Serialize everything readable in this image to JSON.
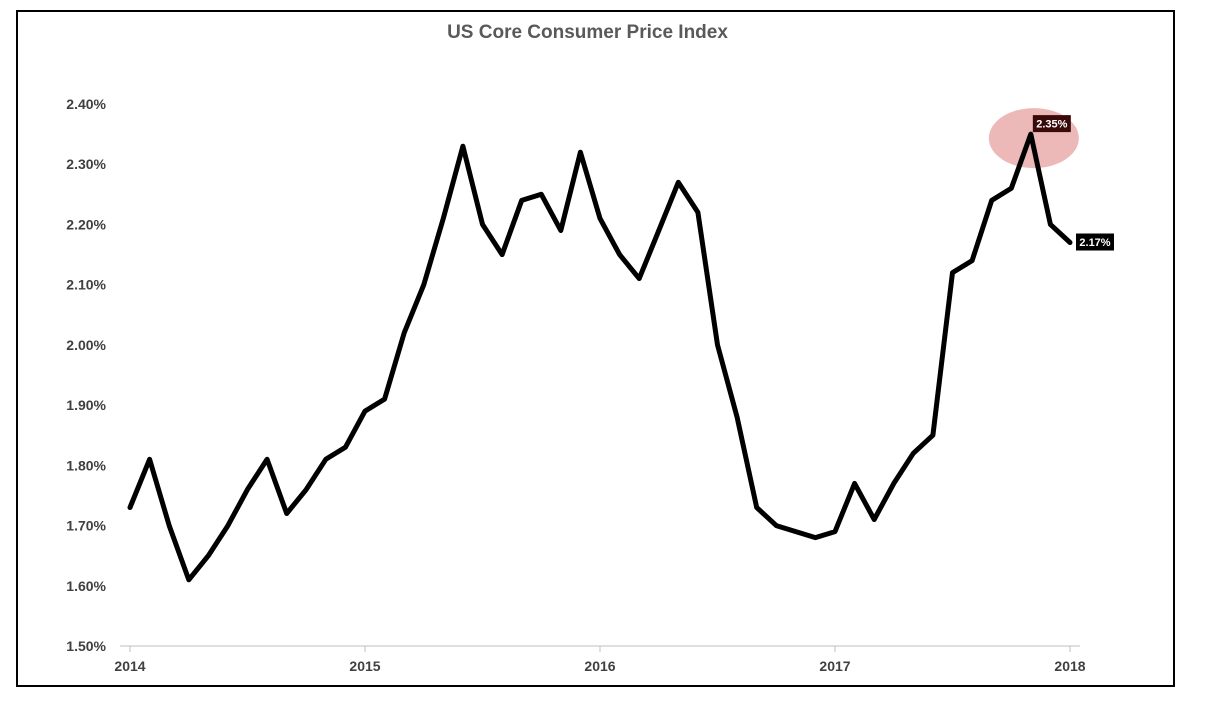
{
  "chart_data": {
    "type": "line",
    "title": "US Core Consumer Price Index",
    "xlabel": "",
    "ylabel": "",
    "ylim": [
      1.5,
      2.4
    ],
    "xlim": [
      "2014-01",
      "2018-01"
    ],
    "yticks": [
      "1.50%",
      "1.60%",
      "1.70%",
      "1.80%",
      "1.90%",
      "2.00%",
      "2.10%",
      "2.20%",
      "2.30%",
      "2.40%"
    ],
    "xticks": [
      "2014",
      "2015",
      "2016",
      "2017",
      "2018"
    ],
    "grid": false,
    "legend": "none",
    "series": [
      {
        "color": "#000000",
        "x": [
          "2014-01",
          "2014-02",
          "2014-03",
          "2014-04",
          "2014-05",
          "2014-06",
          "2014-07",
          "2014-08",
          "2014-09",
          "2014-10",
          "2014-11",
          "2014-12",
          "2015-01",
          "2015-02",
          "2015-03",
          "2015-04",
          "2015-05",
          "2015-06",
          "2015-07",
          "2015-08",
          "2015-09",
          "2015-10",
          "2015-11",
          "2015-12",
          "2016-01",
          "2016-02",
          "2016-03",
          "2016-04",
          "2016-05",
          "2016-06",
          "2016-07",
          "2016-08",
          "2016-09",
          "2016-10",
          "2016-11",
          "2016-12",
          "2017-01",
          "2017-02",
          "2017-03",
          "2017-04",
          "2017-05",
          "2017-06",
          "2017-07",
          "2017-08",
          "2017-09",
          "2017-10",
          "2017-11",
          "2017-12",
          "2018-01"
        ],
        "values": [
          1.73,
          1.81,
          1.7,
          1.61,
          1.65,
          1.7,
          1.76,
          1.81,
          1.72,
          1.76,
          1.81,
          1.83,
          1.89,
          1.91,
          2.02,
          2.1,
          2.21,
          2.33,
          2.2,
          2.15,
          2.24,
          2.25,
          2.19,
          2.32,
          2.21,
          2.15,
          2.11,
          2.19,
          2.27,
          2.22,
          2.0,
          1.88,
          1.73,
          1.7,
          1.69,
          1.68,
          1.69,
          1.77,
          1.71,
          1.77,
          1.82,
          1.85,
          2.12,
          2.14,
          2.24,
          2.26,
          2.35,
          2.2,
          2.17
        ]
      }
    ],
    "annotations": [
      {
        "x": "2017-11",
        "value": 2.35,
        "text": "2.35%",
        "highlight": true,
        "highlight_color": "#e7a0a0"
      },
      {
        "x": "2018-01",
        "value": 2.17,
        "text": "2.17%",
        "highlight": false
      }
    ]
  }
}
